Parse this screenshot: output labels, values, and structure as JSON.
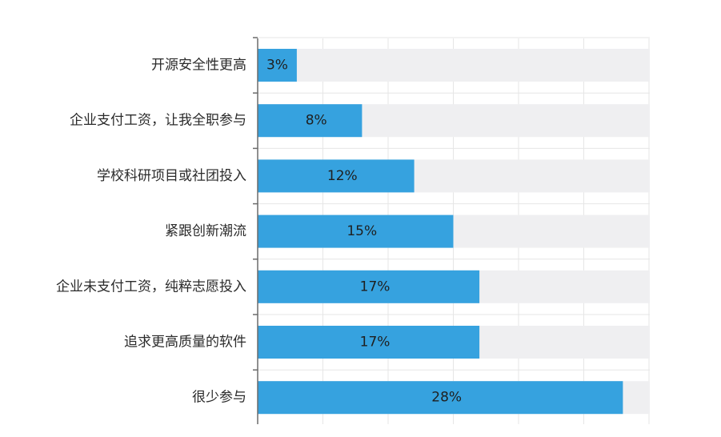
{
  "chart_data": {
    "type": "bar",
    "orientation": "horizontal",
    "categories": [
      "开源安全性更高",
      "企业支付工资，让我全职参与",
      "学校科研项目或社团投入",
      "紧跟创新潮流",
      "企业未支付工资，纯粹志愿投入",
      "追求更高质量的软件",
      "很少参与"
    ],
    "values": [
      3,
      8,
      12,
      15,
      17,
      17,
      28
    ],
    "value_labels": [
      "3%",
      "8%",
      "12%",
      "15%",
      "17%",
      "17%",
      "28%"
    ],
    "xlim": [
      0,
      30
    ],
    "title": "",
    "xlabel": "",
    "ylabel": "",
    "grid": true,
    "legend": "none",
    "colors": {
      "bar": "#36a2df",
      "track": "#efeff1",
      "grid": "#e6e6e6",
      "axis": "#6b6b6b",
      "category_text": "#2b2b2b",
      "value_text": "#1f1f1f"
    }
  }
}
